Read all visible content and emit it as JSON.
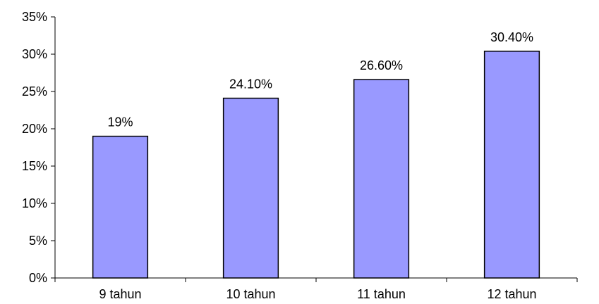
{
  "chart_data": {
    "type": "bar",
    "title": "",
    "xlabel": "",
    "ylabel": "",
    "categories": [
      "9 tahun",
      "10 tahun",
      "11 tahun",
      "12 tahun"
    ],
    "values": [
      19,
      24.1,
      26.6,
      30.4
    ],
    "data_labels": [
      "19%",
      "24.10%",
      "26.60%",
      "30.40%"
    ],
    "ylim": [
      0,
      35
    ],
    "y_ticks": [
      0,
      5,
      10,
      15,
      20,
      25,
      30,
      35
    ],
    "y_tick_labels": [
      "0%",
      "5%",
      "10%",
      "15%",
      "20%",
      "25%",
      "30%",
      "35%"
    ],
    "grid": false,
    "legend": "none",
    "colors": {
      "bar_fill": "#9999ff",
      "bar_stroke": "#000000",
      "axis": "#000000"
    }
  }
}
